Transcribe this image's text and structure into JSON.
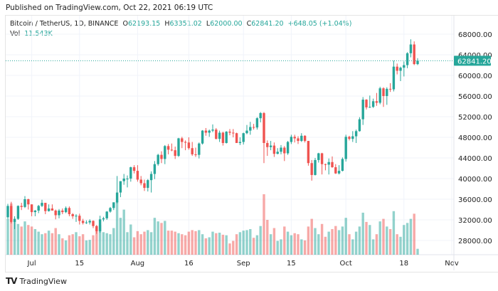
{
  "published": "Published on TradingView.com, Oct 22, 2021 06:19 UTC",
  "legend": {
    "symbol": "Bitcoin / TetherUS, 1D, BINANCE",
    "o_label": "O",
    "o": "62193.15",
    "h_label": "H",
    "h": "63351.02",
    "l_label": "L",
    "l": "62000.00",
    "c_label": "C",
    "c": "62841.20",
    "change": "+648.05 (+1.04%)",
    "vol_label": "Vol",
    "vol": "11.543K"
  },
  "brand": "TradingView",
  "colors": {
    "up": "#26a69a",
    "down": "#ef5350",
    "grid": "#f0f3fa"
  },
  "chart_data": {
    "type": "candlestick",
    "title": "Bitcoin / TetherUS, 1D, BINANCE",
    "start_date": "2021-06-24",
    "ylim": [
      25000,
      70000
    ],
    "y_ticks": [
      "68000.00",
      "64000.00",
      "60000.00",
      "56000.00",
      "52000.00",
      "48000.00",
      "44000.00",
      "40000.00",
      "36000.00",
      "32000.00",
      "28000.00"
    ],
    "x_ticks": [
      {
        "label": "Jul",
        "date": "2021-07-01"
      },
      {
        "label": "15",
        "date": "2021-07-15"
      },
      {
        "label": "Aug",
        "date": "2021-08-01"
      },
      {
        "label": "16",
        "date": "2021-08-16"
      },
      {
        "label": "Sep",
        "date": "2021-09-01"
      },
      {
        "label": "15",
        "date": "2021-09-15"
      },
      {
        "label": "Oct",
        "date": "2021-10-01"
      },
      {
        "label": "18",
        "date": "2021-10-18"
      },
      {
        "label": "Nov",
        "date": "2021-11-01"
      }
    ],
    "last_price": "62841.20",
    "grid": true,
    "volume_unit": "K",
    "candles_ohlcv": [
      [
        32500,
        35100,
        32200,
        34700,
        70
      ],
      [
        34700,
        35500,
        31300,
        31600,
        100
      ],
      [
        31600,
        32700,
        30200,
        32200,
        65
      ],
      [
        32200,
        34800,
        32000,
        34700,
        60
      ],
      [
        34700,
        35300,
        33900,
        34500,
        55
      ],
      [
        34500,
        36600,
        34300,
        36000,
        65
      ],
      [
        36000,
        36100,
        34000,
        35000,
        58
      ],
      [
        35000,
        35000,
        32700,
        33500,
        55
      ],
      [
        33500,
        33900,
        32700,
        33800,
        50
      ],
      [
        33800,
        34900,
        33300,
        34700,
        45
      ],
      [
        34700,
        35900,
        34500,
        35300,
        40
      ],
      [
        35300,
        35300,
        33100,
        33700,
        42
      ],
      [
        33700,
        35000,
        33600,
        34200,
        47
      ],
      [
        34200,
        35000,
        33800,
        33800,
        42
      ],
      [
        33800,
        34000,
        32100,
        32900,
        52
      ],
      [
        32900,
        34100,
        32300,
        33800,
        40
      ],
      [
        33800,
        34200,
        33100,
        33500,
        32
      ],
      [
        33500,
        34600,
        33300,
        34300,
        28
      ],
      [
        34300,
        34600,
        32700,
        33100,
        38
      ],
      [
        33100,
        33300,
        32200,
        32700,
        40
      ],
      [
        32700,
        33100,
        31600,
        32800,
        44
      ],
      [
        32800,
        33200,
        31100,
        31800,
        36
      ],
      [
        31800,
        32200,
        31100,
        31400,
        40
      ],
      [
        31400,
        31900,
        31200,
        31500,
        28
      ],
      [
        31500,
        32100,
        31100,
        31800,
        29
      ],
      [
        31800,
        31900,
        30400,
        30800,
        38
      ],
      [
        30800,
        31000,
        29300,
        29800,
        52
      ],
      [
        29800,
        32800,
        29500,
        32100,
        58
      ],
      [
        32100,
        32600,
        31700,
        32300,
        44
      ],
      [
        32300,
        33700,
        32000,
        33600,
        42
      ],
      [
        33600,
        34500,
        33400,
        34300,
        40
      ],
      [
        34300,
        35400,
        33900,
        35400,
        52
      ],
      [
        35400,
        40500,
        35200,
        37300,
        105
      ],
      [
        37300,
        39500,
        36400,
        39500,
        72
      ],
      [
        39500,
        40900,
        38800,
        40000,
        88
      ],
      [
        40000,
        40600,
        38300,
        40000,
        44
      ],
      [
        40000,
        42300,
        39400,
        42200,
        59
      ],
      [
        42200,
        42600,
        41000,
        41500,
        34
      ],
      [
        41500,
        42600,
        39400,
        39800,
        46
      ],
      [
        39800,
        40500,
        38700,
        39100,
        40
      ],
      [
        39100,
        39800,
        37600,
        38200,
        45
      ],
      [
        38200,
        39900,
        37500,
        39700,
        48
      ],
      [
        39700,
        41400,
        37300,
        40900,
        44
      ],
      [
        40900,
        43400,
        39900,
        42800,
        72
      ],
      [
        42800,
        44800,
        42500,
        44600,
        65
      ],
      [
        44600,
        45300,
        43000,
        43800,
        62
      ],
      [
        43800,
        46500,
        42800,
        46300,
        66
      ],
      [
        46300,
        46700,
        44700,
        45600,
        47
      ],
      [
        45600,
        46800,
        45300,
        45500,
        47
      ],
      [
        45500,
        46200,
        43800,
        44400,
        45
      ],
      [
        44400,
        47900,
        44200,
        47800,
        42
      ],
      [
        47800,
        48100,
        45900,
        47100,
        40
      ],
      [
        47100,
        47400,
        45500,
        47000,
        38
      ],
      [
        47000,
        48000,
        45600,
        45900,
        45
      ],
      [
        45900,
        47100,
        44400,
        44700,
        48
      ],
      [
        44700,
        46000,
        44200,
        44600,
        46
      ],
      [
        44600,
        47000,
        43900,
        46800,
        48
      ],
      [
        46800,
        49400,
        46600,
        49300,
        40
      ],
      [
        49300,
        49800,
        48300,
        48900,
        32
      ],
      [
        48900,
        49500,
        48100,
        49300,
        34
      ],
      [
        49300,
        50500,
        49000,
        49500,
        45
      ],
      [
        49500,
        49800,
        47600,
        47700,
        42
      ],
      [
        47700,
        49300,
        47100,
        48900,
        43
      ],
      [
        48900,
        49100,
        46400,
        46900,
        39
      ],
      [
        46900,
        49200,
        46800,
        49100,
        38
      ],
      [
        49100,
        49600,
        48400,
        48900,
        22
      ],
      [
        48900,
        49600,
        48000,
        48800,
        27
      ],
      [
        48800,
        48900,
        46900,
        46900,
        40
      ],
      [
        46900,
        48000,
        46500,
        47100,
        44
      ],
      [
        47100,
        48900,
        46600,
        48800,
        47
      ],
      [
        48800,
        50400,
        48600,
        49300,
        48
      ],
      [
        49300,
        51000,
        48500,
        50000,
        50
      ],
      [
        50000,
        50600,
        49500,
        49900,
        33
      ],
      [
        49900,
        51900,
        49500,
        51700,
        38
      ],
      [
        51700,
        52900,
        50900,
        52700,
        56
      ],
      [
        52700,
        52900,
        43000,
        46900,
        118
      ],
      [
        46900,
        47400,
        44400,
        46100,
        68
      ],
      [
        46100,
        47300,
        45500,
        46400,
        40
      ],
      [
        46400,
        47000,
        44200,
        44800,
        52
      ],
      [
        44800,
        45900,
        44700,
        45200,
        27
      ],
      [
        45200,
        46500,
        44700,
        46000,
        30
      ],
      [
        46000,
        46300,
        43400,
        44900,
        55
      ],
      [
        44900,
        47300,
        44600,
        47100,
        45
      ],
      [
        47100,
        48500,
        46700,
        48100,
        38
      ],
      [
        48100,
        48500,
        47000,
        47800,
        42
      ],
      [
        47800,
        48200,
        46700,
        47300,
        40
      ],
      [
        47300,
        48800,
        47100,
        48300,
        30
      ],
      [
        48300,
        48400,
        47000,
        47300,
        28
      ],
      [
        47300,
        47300,
        42500,
        43000,
        55
      ],
      [
        43000,
        43600,
        39600,
        40700,
        70
      ],
      [
        40700,
        44000,
        40600,
        43600,
        52
      ],
      [
        43600,
        45000,
        43100,
        44900,
        40
      ],
      [
        44900,
        45000,
        40800,
        42800,
        60
      ],
      [
        42800,
        42900,
        41600,
        42700,
        35
      ],
      [
        42700,
        43900,
        40800,
        43200,
        45
      ],
      [
        43200,
        44300,
        42100,
        42200,
        50
      ],
      [
        42200,
        42800,
        40900,
        41000,
        56
      ],
      [
        41000,
        42600,
        40800,
        41500,
        48
      ],
      [
        41500,
        44100,
        41400,
        43800,
        55
      ],
      [
        43800,
        48500,
        43300,
        48100,
        72
      ],
      [
        48100,
        48300,
        47400,
        47700,
        40
      ],
      [
        47700,
        49200,
        47100,
        48200,
        30
      ],
      [
        48200,
        49500,
        46900,
        49200,
        45
      ],
      [
        49200,
        51900,
        49100,
        51500,
        55
      ],
      [
        51500,
        55800,
        50400,
        55300,
        82
      ],
      [
        55300,
        55400,
        53400,
        53800,
        64
      ],
      [
        53800,
        56100,
        53700,
        53900,
        58
      ],
      [
        53900,
        55500,
        53700,
        55000,
        30
      ],
      [
        55000,
        56600,
        54100,
        54700,
        40
      ],
      [
        54700,
        57800,
        54400,
        57500,
        65
      ],
      [
        57500,
        57700,
        53900,
        56000,
        70
      ],
      [
        56000,
        57700,
        54300,
        57400,
        55
      ],
      [
        57400,
        58500,
        56800,
        57300,
        50
      ],
      [
        57300,
        62900,
        56900,
        61700,
        85
      ],
      [
        61700,
        62300,
        60200,
        60900,
        40
      ],
      [
        60900,
        61700,
        58900,
        61500,
        35
      ],
      [
        61500,
        62700,
        59800,
        62000,
        58
      ],
      [
        62000,
        64500,
        61400,
        64300,
        62
      ],
      [
        64300,
        67000,
        63500,
        66000,
        70
      ],
      [
        66000,
        66600,
        62000,
        62200,
        80
      ],
      [
        62193.15,
        63351.02,
        62000,
        62841.2,
        11.543
      ]
    ]
  }
}
